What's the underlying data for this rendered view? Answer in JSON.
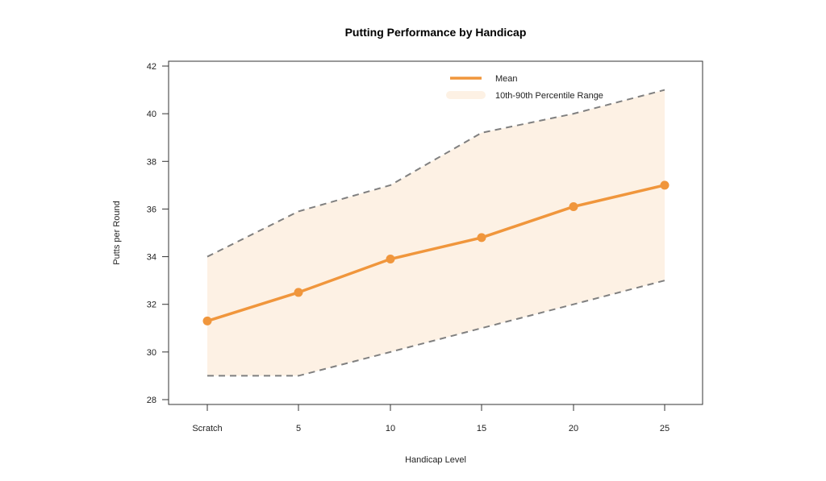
{
  "chart_data": {
    "type": "line",
    "title": "Putting Performance by Handicap",
    "xlabel": "Handicap Level",
    "ylabel": "Putts per Round",
    "categories": [
      "Scratch",
      "5",
      "10",
      "15",
      "20",
      "25"
    ],
    "ylim": [
      28,
      42
    ],
    "yticks": [
      28,
      30,
      32,
      34,
      36,
      38,
      40,
      42
    ],
    "grid": false,
    "legend_position": "top-right",
    "series": [
      {
        "name": "Mean",
        "values": [
          31.3,
          32.5,
          33.9,
          34.8,
          36.1,
          37.0
        ],
        "color": "#F0963C"
      },
      {
        "name": "90th Percentile",
        "values": [
          34.0,
          35.9,
          37.0,
          39.2,
          40.0,
          41.0
        ],
        "color": "#808080",
        "style": "dashed"
      },
      {
        "name": "10th Percentile",
        "values": [
          29.0,
          29.0,
          30.0,
          31.0,
          32.0,
          33.0
        ],
        "color": "#808080",
        "style": "dashed"
      }
    ],
    "band": {
      "name": "10th-90th Percentile Range",
      "color": "#FDF1E4"
    },
    "legend": [
      "Mean",
      "10th-90th Percentile Range"
    ]
  }
}
